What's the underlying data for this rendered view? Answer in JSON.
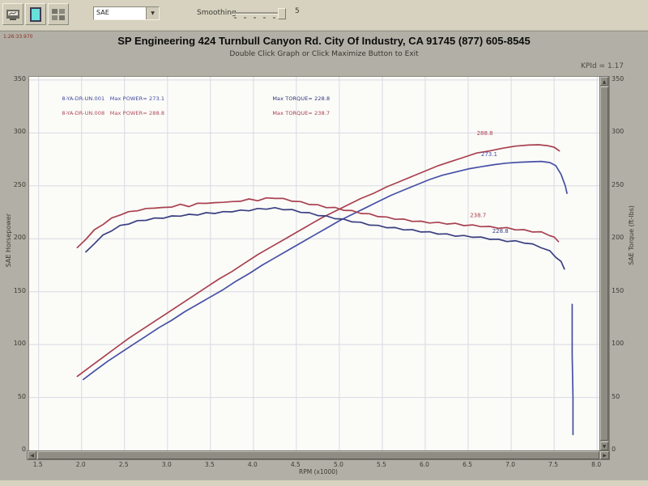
{
  "toolbar": {
    "buttons": [
      {
        "name": "report"
      },
      {
        "name": "maximize-graph"
      },
      {
        "name": "tile-windows"
      }
    ],
    "channel_dropdown": {
      "value": "SAE"
    },
    "smoothing": {
      "label": "Smoothing",
      "value": "5"
    }
  },
  "header": {
    "corner_text": "1:26:33.970",
    "title": "SP Engineering 424 Turnbull Canyon Rd. City Of Industry, CA 91745 (877) 605-8545",
    "subtitle": "Double Click Graph or Click Maximize Button to Exit",
    "ratio_text": "KPId = 1.17"
  },
  "chart_data": {
    "type": "line",
    "x_axis": {
      "label": "RPM (x1000)",
      "min": 1.39,
      "max": 8.14,
      "ticks": [
        "1.5",
        "2.0",
        "2.5",
        "3.0",
        "3.5",
        "4.0",
        "4.5",
        "5.0",
        "5.5",
        "6.0",
        "6.5",
        "7.0",
        "7.5",
        "8.0"
      ]
    },
    "y_left": {
      "label": "SAE Horsepower",
      "min": 0,
      "max": 353,
      "ticks": [
        "350",
        "300",
        "250",
        "200",
        "150",
        "100",
        "50",
        "0"
      ]
    },
    "y_right": {
      "label": "SAE Torque (ft-lbs)",
      "min": 0,
      "max": 353,
      "ticks": [
        "350",
        "300",
        "250",
        "200",
        "150",
        "100",
        "50",
        "0"
      ]
    },
    "grid": true,
    "grid_color": "#d9dae3",
    "legend": {
      "rows": [
        {
          "file": "8-YA-DR-UN.001",
          "power": "Max POWER= 273.1",
          "torque": "Max TORQUE= 228.8",
          "power_color": "#3f49a0",
          "torque_color": "#2f3475"
        },
        {
          "file": "8-YA-DR-UN.008",
          "power": "Max POWER= 288.8",
          "torque": "Max TORQUE= 238.7",
          "power_color": "#b04a58",
          "torque_color": "#a83c4c"
        }
      ]
    },
    "series": [
      {
        "name": "run008-horsepower",
        "color": "#a8414f",
        "jitter": false,
        "points": [
          [
            1.95,
            70
          ],
          [
            2.1,
            79
          ],
          [
            2.25,
            88
          ],
          [
            2.4,
            97
          ],
          [
            2.55,
            106
          ],
          [
            2.7,
            114
          ],
          [
            2.85,
            122
          ],
          [
            3.0,
            130
          ],
          [
            3.15,
            138
          ],
          [
            3.3,
            146
          ],
          [
            3.45,
            154
          ],
          [
            3.6,
            162
          ],
          [
            3.75,
            169
          ],
          [
            3.9,
            177
          ],
          [
            4.05,
            185
          ],
          [
            4.2,
            192
          ],
          [
            4.35,
            199
          ],
          [
            4.5,
            206
          ],
          [
            4.65,
            213
          ],
          [
            4.8,
            220
          ],
          [
            4.95,
            226
          ],
          [
            5.1,
            232
          ],
          [
            5.25,
            238
          ],
          [
            5.4,
            243
          ],
          [
            5.55,
            249
          ],
          [
            5.7,
            254
          ],
          [
            5.85,
            259
          ],
          [
            6.0,
            264
          ],
          [
            6.15,
            269
          ],
          [
            6.3,
            273
          ],
          [
            6.45,
            277
          ],
          [
            6.6,
            281
          ],
          [
            6.75,
            283
          ],
          [
            6.9,
            285.5
          ],
          [
            7.05,
            287.5
          ],
          [
            7.2,
            288.5
          ],
          [
            7.32,
            288.8
          ],
          [
            7.42,
            288
          ],
          [
            7.5,
            286.5
          ],
          [
            7.56,
            283
          ]
        ]
      },
      {
        "name": "run001-horsepower",
        "color": "#4650a5",
        "jitter": false,
        "points": [
          [
            2.02,
            67
          ],
          [
            2.15,
            75
          ],
          [
            2.3,
            84
          ],
          [
            2.45,
            92
          ],
          [
            2.6,
            100
          ],
          [
            2.75,
            108
          ],
          [
            2.9,
            116
          ],
          [
            3.05,
            123
          ],
          [
            3.2,
            131
          ],
          [
            3.35,
            138
          ],
          [
            3.5,
            145
          ],
          [
            3.65,
            152
          ],
          [
            3.8,
            160
          ],
          [
            3.95,
            167
          ],
          [
            4.1,
            175
          ],
          [
            4.25,
            182
          ],
          [
            4.4,
            189
          ],
          [
            4.55,
            196
          ],
          [
            4.7,
            203
          ],
          [
            4.85,
            210
          ],
          [
            5.0,
            217
          ],
          [
            5.15,
            223
          ],
          [
            5.3,
            229
          ],
          [
            5.45,
            235
          ],
          [
            5.6,
            241
          ],
          [
            5.75,
            246
          ],
          [
            5.9,
            251
          ],
          [
            6.05,
            256
          ],
          [
            6.2,
            260
          ],
          [
            6.35,
            263
          ],
          [
            6.5,
            266
          ],
          [
            6.65,
            268
          ],
          [
            6.8,
            270
          ],
          [
            6.95,
            271.5
          ],
          [
            7.1,
            272.3
          ],
          [
            7.25,
            272.8
          ],
          [
            7.35,
            273.1
          ],
          [
            7.45,
            272
          ],
          [
            7.52,
            269
          ],
          [
            7.58,
            261
          ],
          [
            7.63,
            250
          ],
          [
            7.65,
            243
          ]
        ]
      },
      {
        "name": "run001-horsepower-tail",
        "color": "#4650a5",
        "jitter": false,
        "points": [
          [
            7.71,
            138
          ],
          [
            7.71,
            90
          ],
          [
            7.72,
            50
          ],
          [
            7.72,
            15
          ]
        ]
      },
      {
        "name": "run008-torque",
        "color": "#a8414f",
        "jitter": true,
        "points": [
          [
            1.95,
            191
          ],
          [
            2.05,
            200
          ],
          [
            2.15,
            208
          ],
          [
            2.25,
            214
          ],
          [
            2.35,
            219
          ],
          [
            2.45,
            223
          ],
          [
            2.55,
            225
          ],
          [
            2.65,
            227
          ],
          [
            2.75,
            228
          ],
          [
            2.85,
            229.5
          ],
          [
            2.95,
            229
          ],
          [
            3.05,
            230.5
          ],
          [
            3.15,
            232
          ],
          [
            3.25,
            231
          ],
          [
            3.35,
            233
          ],
          [
            3.45,
            234
          ],
          [
            3.55,
            233.5
          ],
          [
            3.65,
            235
          ],
          [
            3.75,
            234.5
          ],
          [
            3.85,
            236
          ],
          [
            3.95,
            237
          ],
          [
            4.05,
            236.5
          ],
          [
            4.15,
            238
          ],
          [
            4.25,
            238.7
          ],
          [
            4.35,
            237.5
          ],
          [
            4.45,
            236
          ],
          [
            4.55,
            234.5
          ],
          [
            4.65,
            233
          ],
          [
            4.75,
            231.5
          ],
          [
            4.85,
            230
          ],
          [
            4.95,
            229
          ],
          [
            5.05,
            227.5
          ],
          [
            5.15,
            226
          ],
          [
            5.25,
            224.5
          ],
          [
            5.35,
            223
          ],
          [
            5.45,
            221.5
          ],
          [
            5.55,
            220
          ],
          [
            5.65,
            219
          ],
          [
            5.75,
            218
          ],
          [
            5.85,
            217
          ],
          [
            5.95,
            216
          ],
          [
            6.05,
            215.5
          ],
          [
            6.15,
            215
          ],
          [
            6.25,
            214.5
          ],
          [
            6.35,
            214
          ],
          [
            6.45,
            213
          ],
          [
            6.55,
            212.5
          ],
          [
            6.65,
            212
          ],
          [
            6.75,
            211
          ],
          [
            6.85,
            210.5
          ],
          [
            6.95,
            210
          ],
          [
            7.05,
            209
          ],
          [
            7.15,
            208
          ],
          [
            7.25,
            207
          ],
          [
            7.35,
            206
          ],
          [
            7.45,
            203.5
          ],
          [
            7.5,
            201
          ],
          [
            7.55,
            198
          ]
        ]
      },
      {
        "name": "run001-torque",
        "color": "#3a3f80",
        "jitter": true,
        "points": [
          [
            2.05,
            187
          ],
          [
            2.15,
            196
          ],
          [
            2.25,
            203
          ],
          [
            2.35,
            208
          ],
          [
            2.45,
            212
          ],
          [
            2.55,
            214.5
          ],
          [
            2.65,
            216.5
          ],
          [
            2.75,
            218
          ],
          [
            2.85,
            219
          ],
          [
            2.95,
            220
          ],
          [
            3.05,
            221
          ],
          [
            3.15,
            222
          ],
          [
            3.25,
            222.5
          ],
          [
            3.35,
            223
          ],
          [
            3.45,
            224
          ],
          [
            3.55,
            224.5
          ],
          [
            3.65,
            225
          ],
          [
            3.75,
            226
          ],
          [
            3.85,
            226.5
          ],
          [
            3.95,
            227
          ],
          [
            4.05,
            228
          ],
          [
            4.15,
            228.5
          ],
          [
            4.25,
            228.8
          ],
          [
            4.35,
            228
          ],
          [
            4.45,
            227
          ],
          [
            4.55,
            225.5
          ],
          [
            4.65,
            224
          ],
          [
            4.75,
            222.5
          ],
          [
            4.85,
            221
          ],
          [
            4.95,
            219.5
          ],
          [
            5.05,
            218
          ],
          [
            5.15,
            216.5
          ],
          [
            5.25,
            215
          ],
          [
            5.35,
            213.5
          ],
          [
            5.45,
            212
          ],
          [
            5.55,
            211
          ],
          [
            5.65,
            210
          ],
          [
            5.75,
            209
          ],
          [
            5.85,
            208
          ],
          [
            5.95,
            207
          ],
          [
            6.05,
            206
          ],
          [
            6.15,
            205
          ],
          [
            6.25,
            204
          ],
          [
            6.35,
            203
          ],
          [
            6.45,
            202.5
          ],
          [
            6.55,
            202
          ],
          [
            6.65,
            201
          ],
          [
            6.75,
            200
          ],
          [
            6.85,
            199
          ],
          [
            6.95,
            198
          ],
          [
            7.05,
            197.5
          ],
          [
            7.15,
            196.5
          ],
          [
            7.25,
            194.5
          ],
          [
            7.35,
            192
          ],
          [
            7.45,
            188
          ],
          [
            7.52,
            183
          ],
          [
            7.58,
            178
          ],
          [
            7.62,
            172
          ]
        ]
      }
    ],
    "annotations": [
      {
        "text": "288.8",
        "rpm": 6.6,
        "value": 298,
        "color": "#a8414f"
      },
      {
        "text": "273.1",
        "rpm": 6.65,
        "value": 278,
        "color": "#4650a5"
      },
      {
        "text": "238.7",
        "rpm": 6.52,
        "value": 220.5,
        "color": "#a8414f"
      },
      {
        "text": "228.8",
        "rpm": 6.78,
        "value": 205.5,
        "color": "#3a3f80"
      }
    ]
  }
}
